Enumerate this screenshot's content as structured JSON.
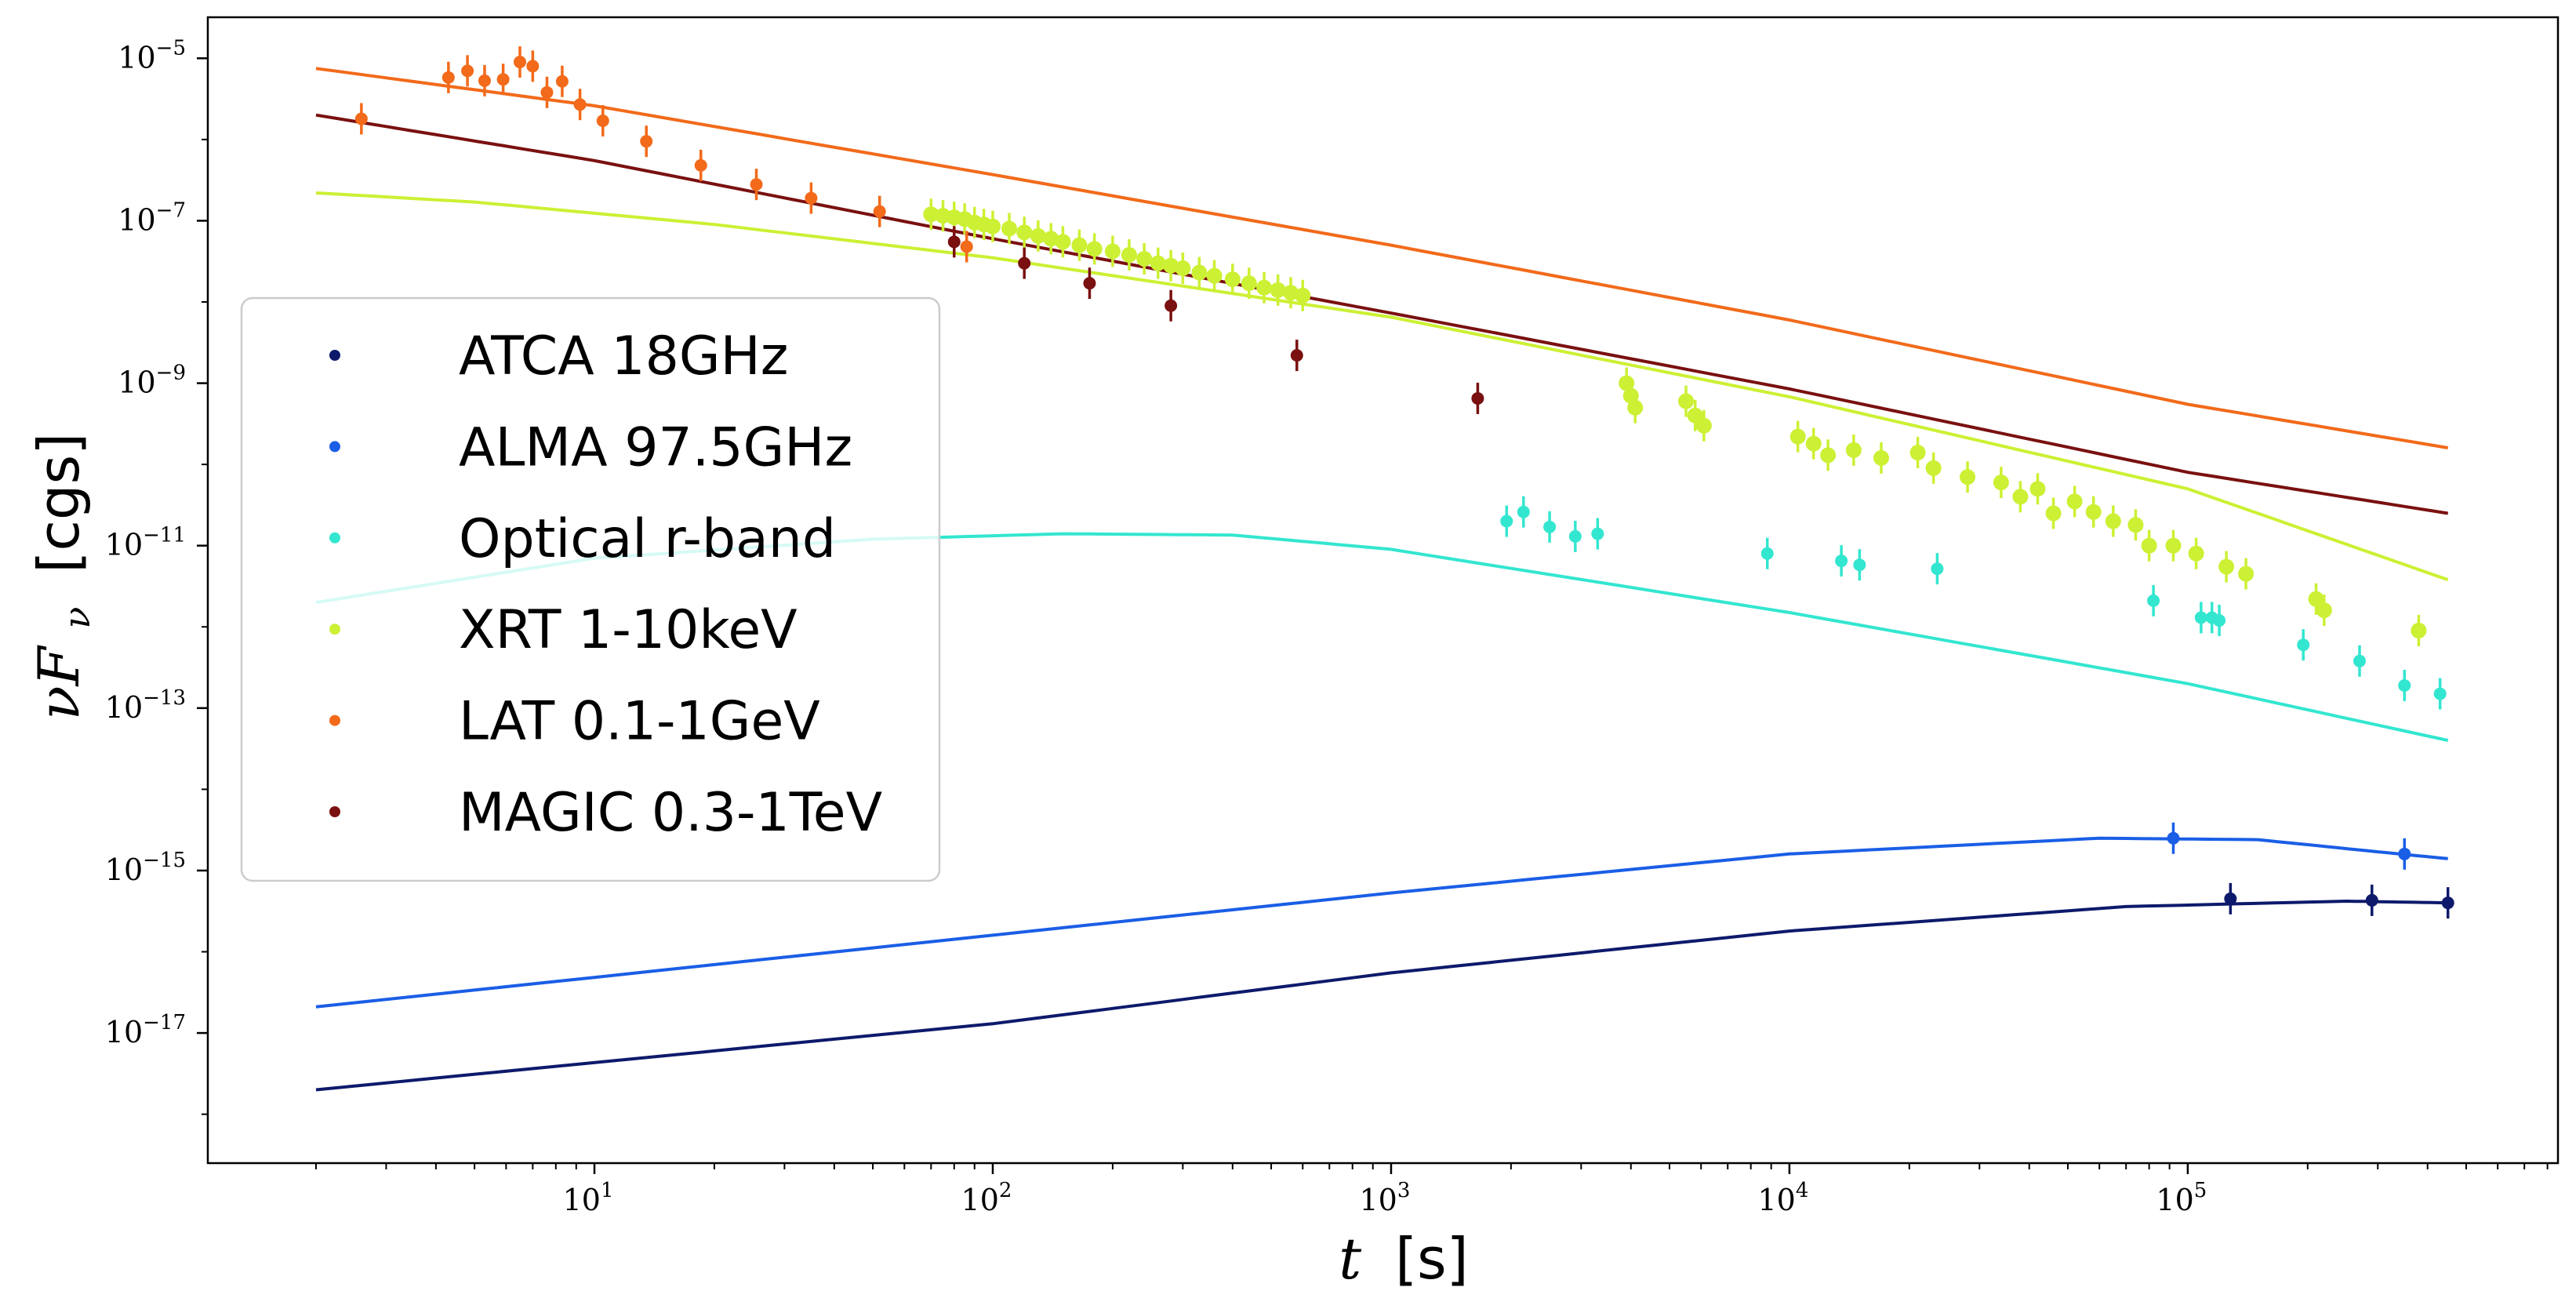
{
  "chart_data": {
    "type": "scatter",
    "title": "",
    "xlabel": {
      "var": "t",
      "unit": "[s]"
    },
    "ylabel": {
      "var": "νF",
      "sub": "ν",
      "unit": "[cgs]"
    },
    "xscale": "log",
    "yscale": "log",
    "xlim": [
      1.07,
      850000
    ],
    "ylim": [
      2.5e-19,
      3.2e-05
    ],
    "grid": false,
    "legend_position": "center-left",
    "x_ticks": [
      {
        "value": 10,
        "base": "10",
        "exp": "1"
      },
      {
        "value": 100,
        "base": "10",
        "exp": "2"
      },
      {
        "value": 1000,
        "base": "10",
        "exp": "3"
      },
      {
        "value": 10000,
        "base": "10",
        "exp": "4"
      },
      {
        "value": 100000,
        "base": "10",
        "exp": "5"
      }
    ],
    "y_ticks": [
      {
        "value": 1e-05,
        "base": "10",
        "exp": "−5"
      },
      {
        "value": 1e-07,
        "base": "10",
        "exp": "−7"
      },
      {
        "value": 1e-09,
        "base": "10",
        "exp": "−9"
      },
      {
        "value": 1e-11,
        "base": "10",
        "exp": "−11"
      },
      {
        "value": 1e-13,
        "base": "10",
        "exp": "−13"
      },
      {
        "value": 1e-15,
        "base": "10",
        "exp": "−15"
      },
      {
        "value": 1e-17,
        "base": "10",
        "exp": "−17"
      }
    ],
    "series": [
      {
        "name": "ATCA 18GHz",
        "color": "#0d1a6b",
        "model": [
          [
            2,
            2e-18
          ],
          [
            100,
            1.3e-17
          ],
          [
            1000,
            5.5e-17
          ],
          [
            10000,
            1.8e-16
          ],
          [
            70000,
            3.6e-16
          ],
          [
            250000,
            4.2e-16
          ],
          [
            450000,
            4e-16
          ]
        ],
        "points": [
          [
            128000,
            4.5e-16
          ],
          [
            290000,
            4.3e-16
          ],
          [
            450000,
            4e-16
          ]
        ]
      },
      {
        "name": "ALMA 97.5GHz",
        "color": "#1a5ee6",
        "model": [
          [
            2,
            2.1e-17
          ],
          [
            100,
            1.6e-16
          ],
          [
            1000,
            5.3e-16
          ],
          [
            10000,
            1.6e-15
          ],
          [
            60000,
            2.5e-15
          ],
          [
            150000,
            2.4e-15
          ],
          [
            300000,
            1.7e-15
          ],
          [
            450000,
            1.4e-15
          ]
        ],
        "points": [
          [
            92000,
            2.5e-15
          ],
          [
            350000,
            1.6e-15
          ]
        ]
      },
      {
        "name": "Optical r-band",
        "color": "#33e6d0",
        "model": [
          [
            2,
            2e-12
          ],
          [
            10,
            7e-12
          ],
          [
            50,
            1.2e-11
          ],
          [
            150,
            1.4e-11
          ],
          [
            400,
            1.35e-11
          ],
          [
            1000,
            9e-12
          ],
          [
            10000,
            1.5e-12
          ],
          [
            100000,
            2e-13
          ],
          [
            450000,
            4e-14
          ]
        ],
        "points": [
          [
            1950,
            2e-11
          ],
          [
            2150,
            2.6e-11
          ],
          [
            2500,
            1.7e-11
          ],
          [
            2900,
            1.3e-11
          ],
          [
            3300,
            1.4e-11
          ],
          [
            8800,
            8e-12
          ],
          [
            13500,
            6.5e-12
          ],
          [
            15000,
            5.8e-12
          ],
          [
            23500,
            5.2e-12
          ],
          [
            82000,
            2.1e-12
          ],
          [
            108000,
            1.3e-12
          ],
          [
            115000,
            1.3e-12
          ],
          [
            120000,
            1.2e-12
          ],
          [
            195000,
            6e-13
          ],
          [
            270000,
            3.8e-13
          ],
          [
            350000,
            1.9e-13
          ],
          [
            430000,
            1.5e-13
          ]
        ]
      },
      {
        "name": "XRT 1-10keV",
        "color": "#ccf033",
        "model": [
          [
            2,
            2.2e-07
          ],
          [
            5,
            1.7e-07
          ],
          [
            20,
            9e-08
          ],
          [
            100,
            3.5e-08
          ],
          [
            1000,
            6.5e-09
          ],
          [
            10000,
            6.8e-10
          ],
          [
            100000,
            5e-11
          ],
          [
            450000,
            3.8e-12
          ]
        ],
        "points": [
          [
            70,
            1.2e-07
          ],
          [
            75,
            1.15e-07
          ],
          [
            80,
            1.1e-07
          ],
          [
            85,
            1.05e-07
          ],
          [
            90,
            9.5e-08
          ],
          [
            95,
            9e-08
          ],
          [
            100,
            8.5e-08
          ],
          [
            110,
            8e-08
          ],
          [
            120,
            7.2e-08
          ],
          [
            130,
            6.5e-08
          ],
          [
            140,
            6e-08
          ],
          [
            150,
            5.5e-08
          ],
          [
            165,
            5e-08
          ],
          [
            180,
            4.5e-08
          ],
          [
            200,
            4.2e-08
          ],
          [
            220,
            3.8e-08
          ],
          [
            240,
            3.4e-08
          ],
          [
            260,
            3e-08
          ],
          [
            280,
            2.8e-08
          ],
          [
            300,
            2.6e-08
          ],
          [
            330,
            2.3e-08
          ],
          [
            360,
            2.1e-08
          ],
          [
            400,
            1.9e-08
          ],
          [
            440,
            1.7e-08
          ],
          [
            480,
            1.5e-08
          ],
          [
            520,
            1.4e-08
          ],
          [
            560,
            1.3e-08
          ],
          [
            600,
            1.2e-08
          ],
          [
            3900,
            1e-09
          ],
          [
            4000,
            7e-10
          ],
          [
            4100,
            5e-10
          ],
          [
            5500,
            6e-10
          ],
          [
            5800,
            4e-10
          ],
          [
            6100,
            3e-10
          ],
          [
            10500,
            2.2e-10
          ],
          [
            11500,
            1.8e-10
          ],
          [
            12500,
            1.3e-10
          ],
          [
            14500,
            1.5e-10
          ],
          [
            17000,
            1.2e-10
          ],
          [
            21000,
            1.4e-10
          ],
          [
            23000,
            9e-11
          ],
          [
            28000,
            7e-11
          ],
          [
            34000,
            6e-11
          ],
          [
            38000,
            4e-11
          ],
          [
            42000,
            5e-11
          ],
          [
            46000,
            2.5e-11
          ],
          [
            52000,
            3.5e-11
          ],
          [
            58000,
            2.6e-11
          ],
          [
            65000,
            2e-11
          ],
          [
            74000,
            1.8e-11
          ],
          [
            80000,
            1e-11
          ],
          [
            92000,
            1e-11
          ],
          [
            105000,
            8e-12
          ],
          [
            125000,
            5.5e-12
          ],
          [
            140000,
            4.5e-12
          ],
          [
            210000,
            2.2e-12
          ],
          [
            220000,
            1.6e-12
          ],
          [
            380000,
            9e-13
          ]
        ]
      },
      {
        "name": "LAT 0.1-1GeV",
        "color": "#f26a1a",
        "model": [
          [
            2,
            7.5e-06
          ],
          [
            10,
            2.6e-06
          ],
          [
            100,
            3.7e-07
          ],
          [
            1000,
            5e-08
          ],
          [
            10000,
            6e-09
          ],
          [
            100000,
            5.5e-10
          ],
          [
            450000,
            1.6e-10
          ]
        ],
        "points": [
          [
            2.6,
            1.8e-06
          ],
          [
            4.3,
            5.8e-06
          ],
          [
            4.8,
            7e-06
          ],
          [
            5.3,
            5.3e-06
          ],
          [
            5.9,
            5.5e-06
          ],
          [
            6.5,
            9e-06
          ],
          [
            7.0,
            8e-06
          ],
          [
            7.6,
            3.8e-06
          ],
          [
            8.3,
            5.2e-06
          ],
          [
            9.2,
            2.7e-06
          ],
          [
            10.5,
            1.7e-06
          ],
          [
            13.5,
            9.5e-07
          ],
          [
            18.5,
            4.8e-07
          ],
          [
            25.5,
            2.8e-07
          ],
          [
            35,
            1.9e-07
          ],
          [
            52,
            1.3e-07
          ],
          [
            86,
            4.8e-08
          ]
        ]
      },
      {
        "name": "MAGIC 0.3-1TeV",
        "color": "#7a1010",
        "model": [
          [
            2,
            2e-06
          ],
          [
            10,
            5.5e-07
          ],
          [
            100,
            6e-08
          ],
          [
            1000,
            7.3e-09
          ],
          [
            10000,
            8.5e-10
          ],
          [
            100000,
            8e-11
          ],
          [
            450000,
            2.5e-11
          ]
        ],
        "points": [
          [
            80,
            5.5e-08
          ],
          [
            120,
            3e-08
          ],
          [
            175,
            1.7e-08
          ],
          [
            280,
            9e-09
          ],
          [
            580,
            2.2e-09
          ],
          [
            1650,
            6.5e-10
          ]
        ]
      }
    ]
  }
}
